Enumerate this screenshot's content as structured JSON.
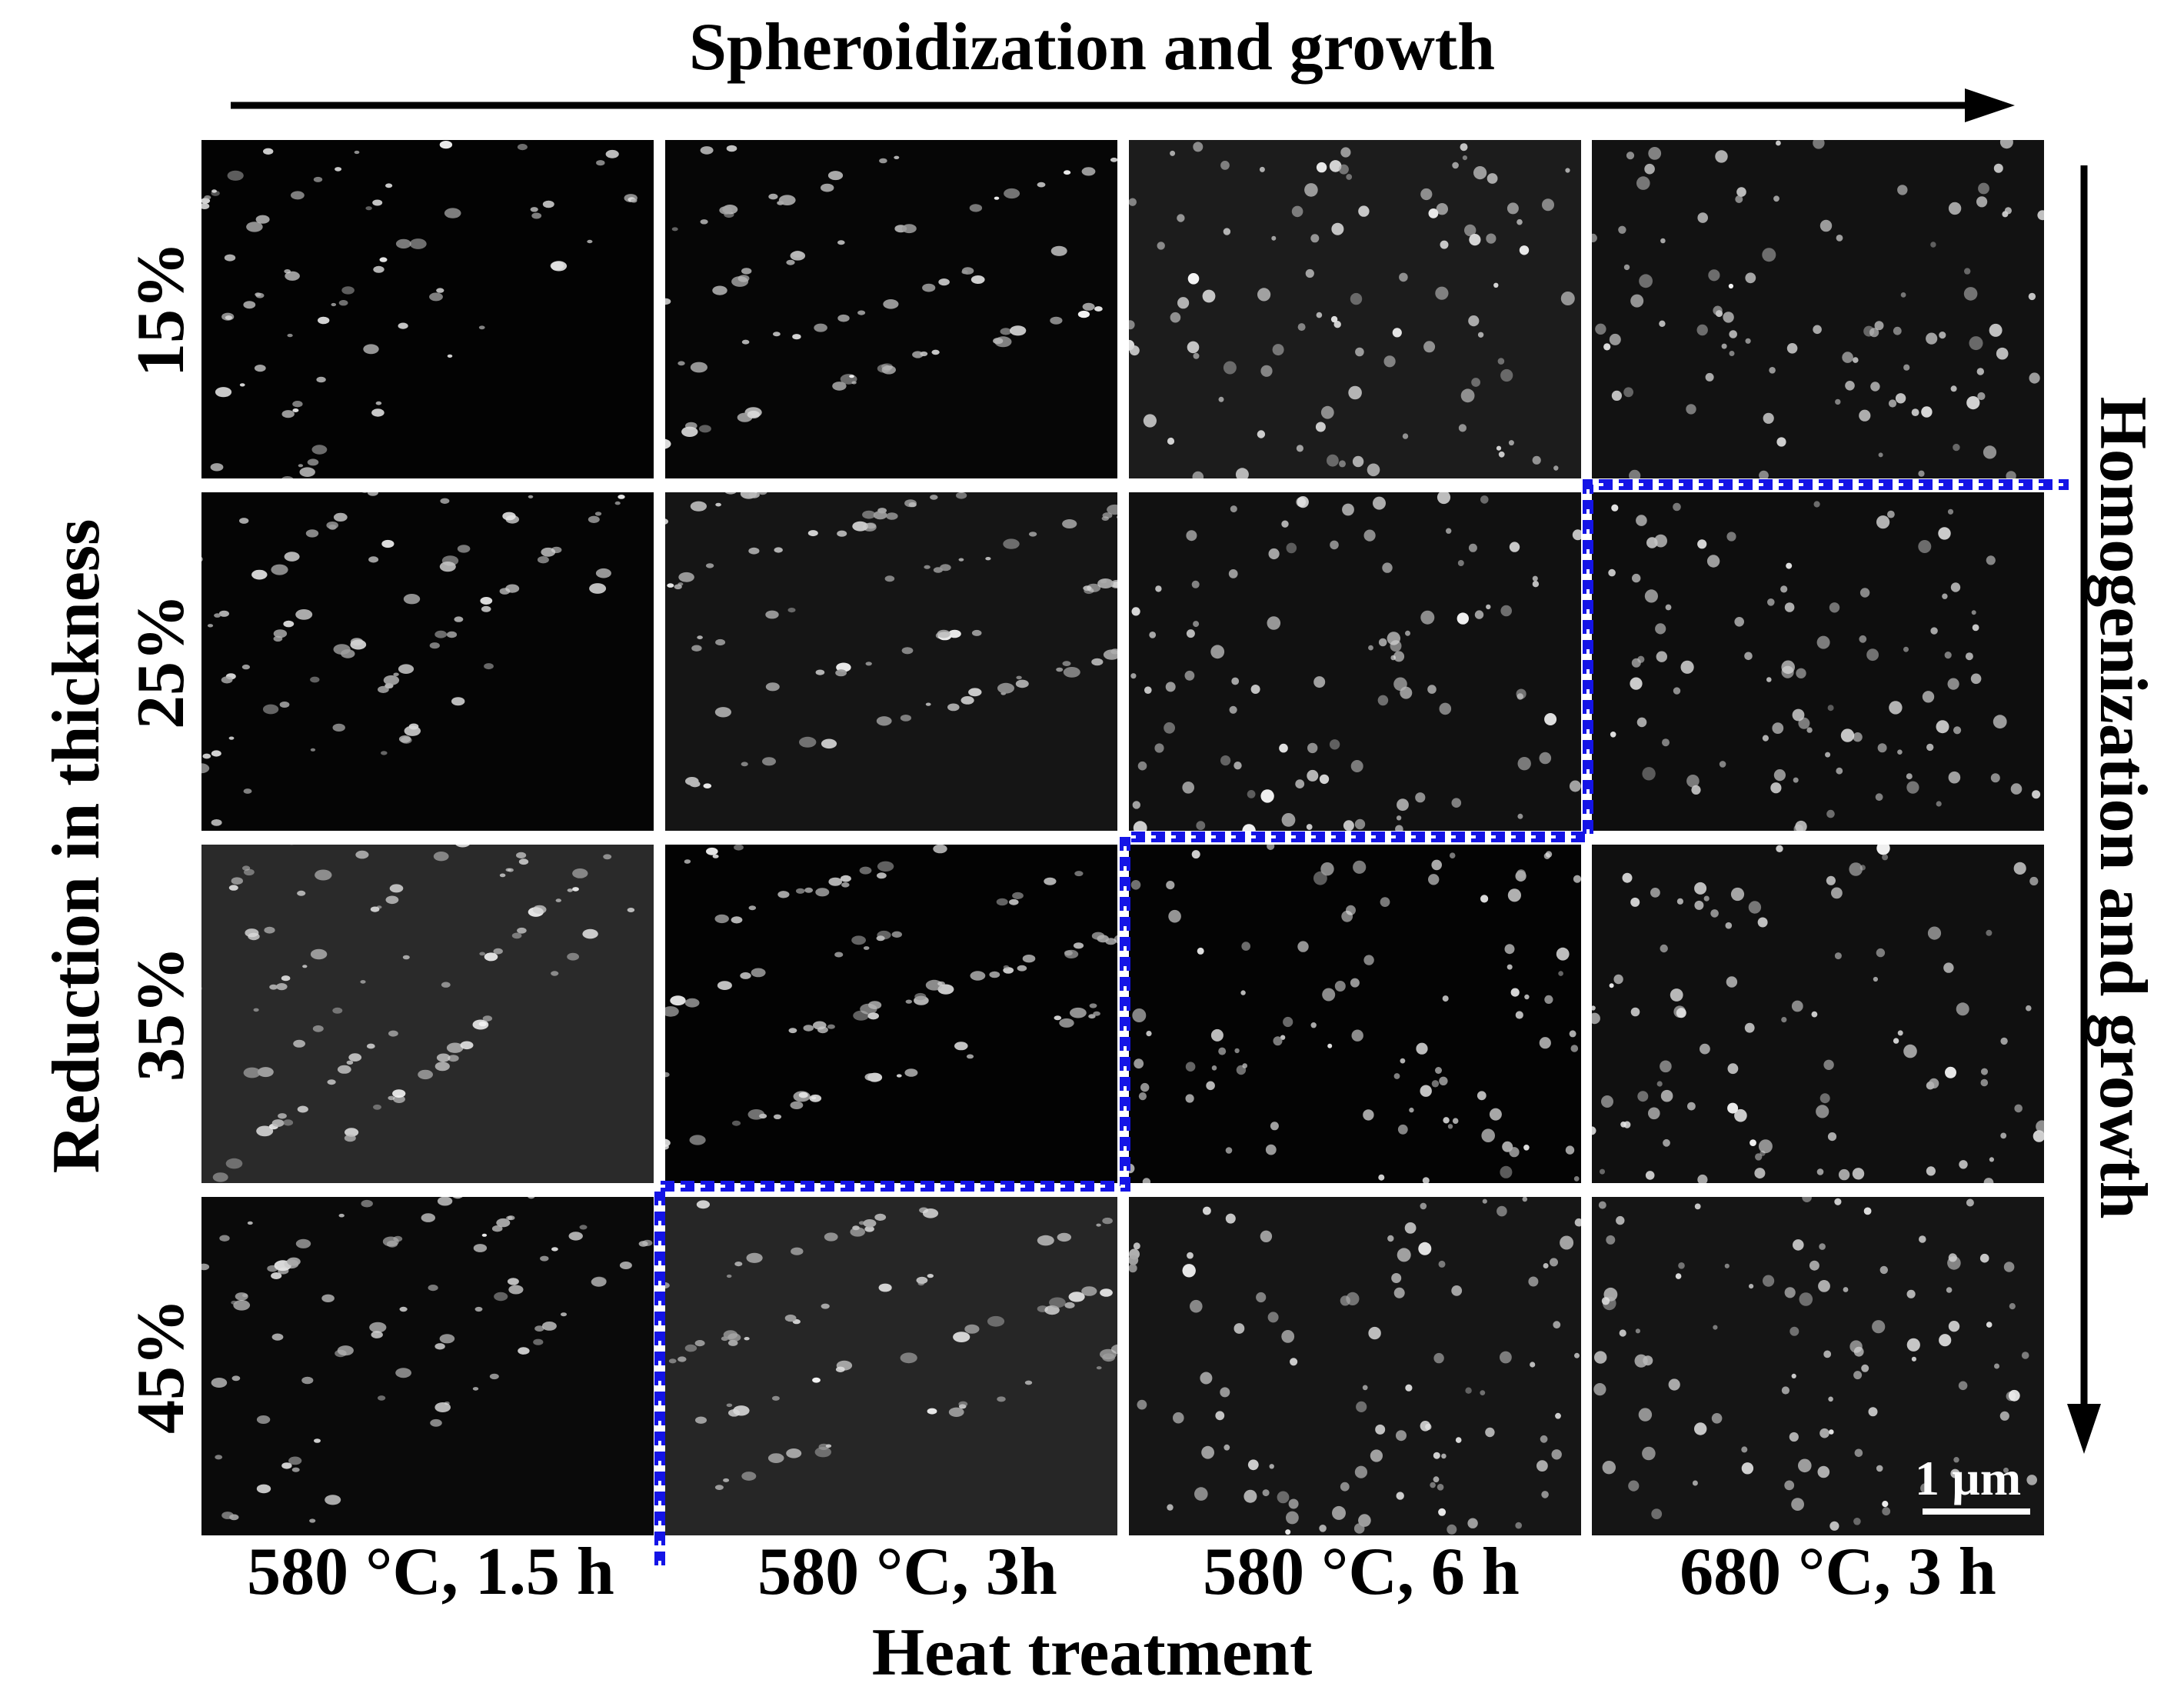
{
  "figure": {
    "top_title": "Spheroidization and growth",
    "right_title": "Homogenization and growth",
    "x_axis_title": "Heat treatment",
    "y_axis_title": "Reduction in thickness",
    "column_labels": [
      "580 °C, 1.5 h",
      "580 °C, 3h",
      "580 °C, 6 h",
      "680 °C, 3 h"
    ],
    "row_labels": [
      "15%",
      "25%",
      "35%",
      "45%"
    ],
    "scale_bar_label": "1 µm",
    "colors": {
      "boundary_dash": "#1414e6",
      "boundary_dot": "#ffffff",
      "panel_dark": "#050505",
      "particle": "#e6e6e6"
    }
  }
}
